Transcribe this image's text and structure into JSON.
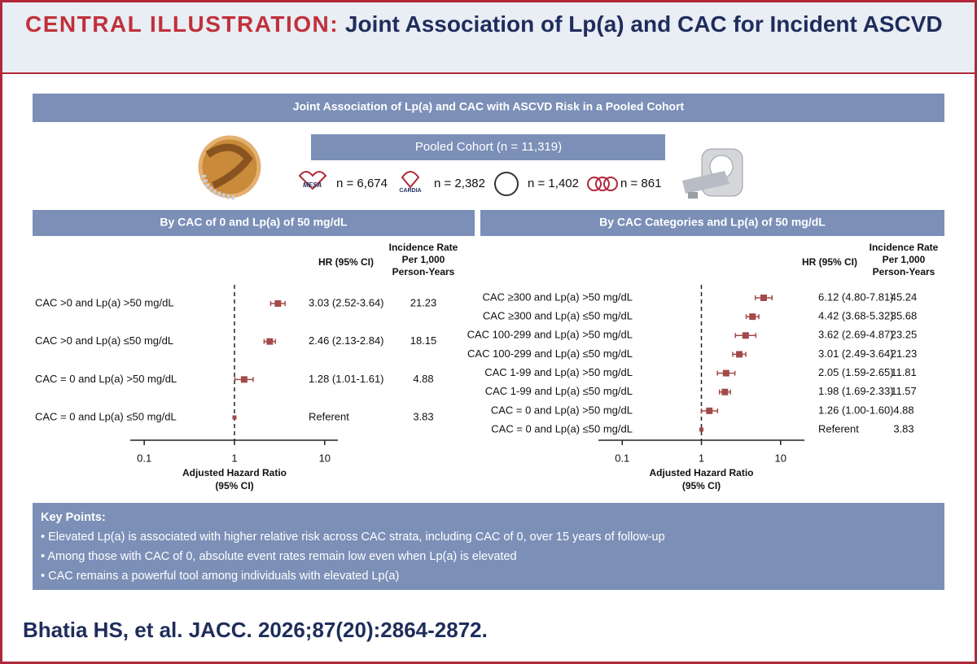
{
  "header": {
    "title_label": "CENTRAL ILLUSTRATION:",
    "title": "Joint Association of Lp(a) and CAC for Incident ASCVD"
  },
  "banner": "Joint Association of Lp(a) and CAC with ASCVD Risk in a Pooled Cohort",
  "cohort": {
    "pooled": "Pooled Cohort (n = 11,319)",
    "studies": [
      {
        "logo": "MESA",
        "n": "n = 6,674"
      },
      {
        "logo": "CARDIA",
        "n": "n = 2,382"
      },
      {
        "n": "n = 1,402"
      },
      {
        "n": "n = 861"
      }
    ]
  },
  "chart_data": [
    {
      "type": "forest",
      "title": "By CAC of 0 and Lp(a) of 50 mg/dL",
      "categories": [
        "CAC >0 and Lp(a) >50 mg/dL",
        "CAC >0 and Lp(a) ≤50 mg/dL",
        "CAC = 0 and Lp(a) >50 mg/dL",
        "CAC = 0 and Lp(a) ≤50 mg/dL"
      ],
      "values": [
        3.03,
        2.46,
        1.28,
        1
      ],
      "lower": [
        2.52,
        2.13,
        1.01,
        null
      ],
      "upper": [
        3.64,
        2.84,
        1.61,
        null
      ],
      "value_labels": [
        "3.03 (2.52-3.64)",
        "2.46 (2.13-2.84)",
        "1.28 (1.01-1.61)",
        "Referent"
      ],
      "incidence_rates": [
        21.23,
        18.15,
        4.88,
        3.83
      ],
      "color": "#a24a4a",
      "columns": {
        "hr": "HR (95% CI)",
        "incidence": [
          "Incidence Rate",
          "Per 1,000",
          "Person-Years"
        ]
      },
      "x_label": [
        "Adjusted Hazard Ratio",
        "(95% CI)"
      ],
      "xscale": "log",
      "xlim": [
        0.07,
        14
      ],
      "xticks": [
        0.1,
        1,
        10
      ],
      "reference_line": 1
    },
    {
      "type": "forest",
      "title": "By CAC Categories and Lp(a) of 50 mg/dL",
      "categories": [
        "CAC ≥300 and Lp(a) >50 mg/dL",
        "CAC ≥300 and Lp(a) ≤50 mg/dL",
        "CAC 100-299 and Lp(a) >50 mg/dL",
        "CAC 100-299 and Lp(a) ≤50 mg/dL",
        "CAC 1-99 and Lp(a) >50 mg/dL",
        "CAC 1-99 and Lp(a) ≤50 mg/dL",
        "CAC = 0 and Lp(a) >50 mg/dL",
        "CAC = 0 and Lp(a) ≤50 mg/dL"
      ],
      "values": [
        6.12,
        4.42,
        3.62,
        3.01,
        2.05,
        1.98,
        1.26,
        1
      ],
      "lower": [
        4.8,
        3.68,
        2.69,
        2.49,
        1.59,
        1.69,
        1.0,
        null
      ],
      "upper": [
        7.81,
        5.32,
        4.87,
        3.64,
        2.65,
        2.33,
        1.6,
        null
      ],
      "value_labels": [
        "6.12 (4.80-7.81)",
        "4.42 (3.68-5.32)",
        "3.62 (2.69-4.87)",
        "3.01 (2.49-3.64)",
        "2.05 (1.59-2.65)",
        "1.98 (1.69-2.33)",
        "1.26 (1.00-1.60)",
        "Referent"
      ],
      "incidence_rates": [
        45.24,
        35.68,
        23.25,
        21.23,
        11.81,
        11.57,
        4.88,
        3.83
      ],
      "color": "#a24a4a",
      "columns": {
        "hr": "HR (95% CI)",
        "incidence": [
          "Incidence Rate",
          "Per 1,000",
          "Person-Years"
        ]
      },
      "x_label": [
        "Adjusted Hazard Ratio",
        "(95% CI)"
      ],
      "xscale": "log",
      "xlim": [
        0.05,
        20
      ],
      "xticks": [
        0.1,
        1,
        10
      ],
      "reference_line": 1
    }
  ],
  "key_points": {
    "title": "Key Points:",
    "items": [
      "Elevated Lp(a) is associated with higher relative risk across CAC strata, including CAC of 0, over 15 years of follow-up",
      "Among those with CAC of 0, absolute event rates remain low even when Lp(a) is elevated",
      "CAC remains a powerful tool among individuals with elevated Lp(a)"
    ]
  },
  "citation": "Bhatia HS, et al. JACC. 2026;87(20):2864-2872."
}
